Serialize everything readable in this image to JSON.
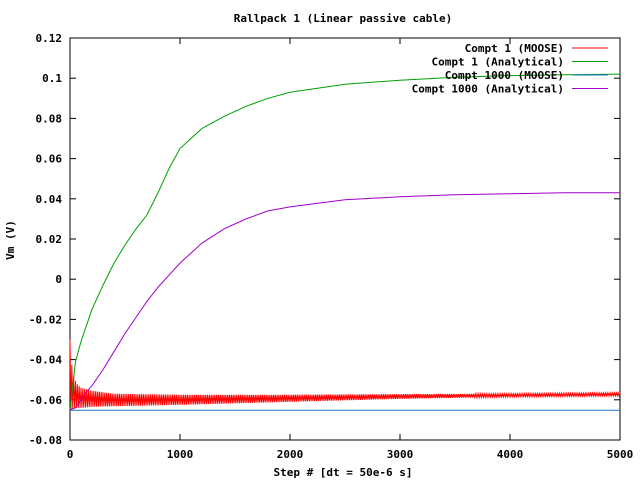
{
  "chart_data": {
    "type": "line",
    "title": "Rallpack 1 (Linear passive cable)",
    "xlabel": "Step # [dt = 50e-6 s]",
    "ylabel": "Vm (V)",
    "xlim": [
      0,
      5000
    ],
    "ylim": [
      -0.08,
      0.12
    ],
    "x_ticks": [
      0,
      1000,
      2000,
      3000,
      4000,
      5000
    ],
    "y_ticks": [
      -0.08,
      -0.06,
      -0.04,
      -0.02,
      0,
      0.02,
      0.04,
      0.06,
      0.08,
      0.1,
      0.12
    ],
    "x_tick_labels": [
      "0",
      "1000",
      "2000",
      "3000",
      "4000",
      "5000"
    ],
    "y_tick_labels": [
      "-0.08",
      "-0.06",
      "-0.04",
      "-0.02",
      "0",
      "0.02",
      "0.04",
      "0.06",
      "0.08",
      "0.1",
      "0.12"
    ],
    "grid": false,
    "legend_position": "top-right",
    "series": [
      {
        "name": "Compt 1 (MOOSE)",
        "color": "#ff0000",
        "style": "oscillating band",
        "x": [
          0,
          10,
          30,
          60,
          100,
          200,
          400,
          1000,
          2000,
          3000,
          4000,
          5000
        ],
        "y_upper": [
          -0.03,
          -0.04,
          -0.048,
          -0.052,
          -0.054,
          -0.0555,
          -0.057,
          -0.0575,
          -0.0575,
          -0.0572,
          -0.057,
          -0.0565
        ],
        "y_lower": [
          -0.065,
          -0.065,
          -0.064,
          -0.064,
          -0.064,
          -0.0635,
          -0.0632,
          -0.0625,
          -0.061,
          -0.0595,
          -0.0585,
          -0.058
        ]
      },
      {
        "name": "Compt 1 (Analytical)",
        "color": "#00a000",
        "x": [
          0,
          50,
          100,
          200,
          300,
          400,
          500,
          600,
          700,
          800,
          900,
          1000,
          1200,
          1400,
          1600,
          1800,
          2000,
          2500,
          3000,
          3500,
          4000,
          4500,
          5000
        ],
        "y": [
          -0.065,
          -0.041,
          -0.031,
          -0.015,
          -0.003,
          0.008,
          0.017,
          0.025,
          0.032,
          0.043,
          0.055,
          0.065,
          0.075,
          0.081,
          0.086,
          0.09,
          0.093,
          0.097,
          0.099,
          0.1005,
          0.1013,
          0.1017,
          0.102
        ]
      },
      {
        "name": "Compt 1000 (MOOSE)",
        "color": "#1e7ad8",
        "x": [
          0,
          5000
        ],
        "y": [
          -0.0652,
          -0.0652
        ]
      },
      {
        "name": "Compt 1000 (Analytical)",
        "color": "#a000c8",
        "x": [
          0,
          50,
          100,
          150,
          200,
          300,
          400,
          500,
          600,
          700,
          800,
          900,
          1000,
          1200,
          1400,
          1600,
          1800,
          2000,
          2500,
          3000,
          3500,
          4000,
          4500,
          5000
        ],
        "y": [
          -0.065,
          -0.064,
          -0.06,
          -0.056,
          -0.053,
          -0.045,
          -0.036,
          -0.027,
          -0.019,
          -0.011,
          -0.004,
          0.002,
          0.008,
          0.018,
          0.025,
          0.03,
          0.034,
          0.036,
          0.0395,
          0.041,
          0.042,
          0.0425,
          0.043,
          0.043
        ]
      }
    ]
  }
}
